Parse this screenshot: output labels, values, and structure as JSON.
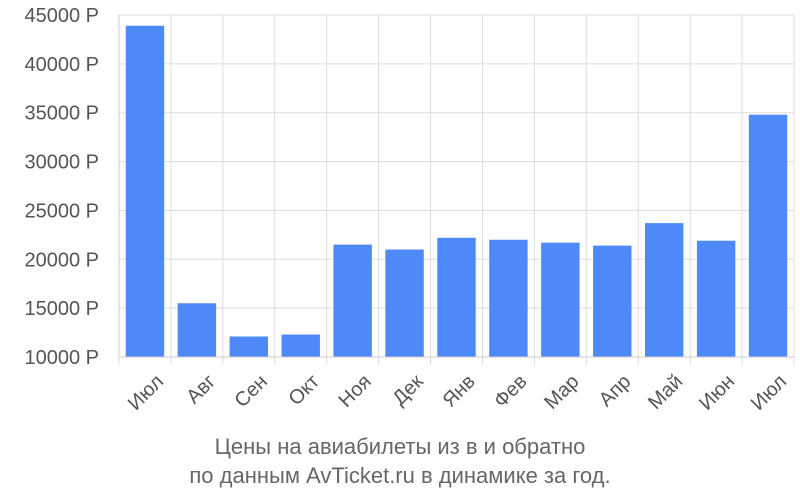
{
  "chart_data": {
    "type": "bar",
    "categories": [
      "Июл",
      "Авг",
      "Сен",
      "Окт",
      "Ноя",
      "Дек",
      "Янв",
      "Фев",
      "Мар",
      "Апр",
      "Май",
      "Июн",
      "Июл"
    ],
    "values": [
      43900,
      15500,
      12100,
      12300,
      21500,
      21000,
      22200,
      22000,
      21700,
      21400,
      23700,
      21900,
      34800
    ],
    "yticks": [
      "10000 Р",
      "15000 Р",
      "20000 Р",
      "25000 Р",
      "30000 Р",
      "35000 Р",
      "40000 Р",
      "45000 Р"
    ],
    "ytick_values": [
      10000,
      15000,
      20000,
      25000,
      30000,
      35000,
      40000,
      45000
    ],
    "ylim": [
      10000,
      45000
    ],
    "grid": true,
    "bar_color": "#4e89f9",
    "title_line1": "Цены на авиабилеты из  в  и обратно",
    "title_line2": "по данным AvTicket.ru в динамике за год."
  }
}
